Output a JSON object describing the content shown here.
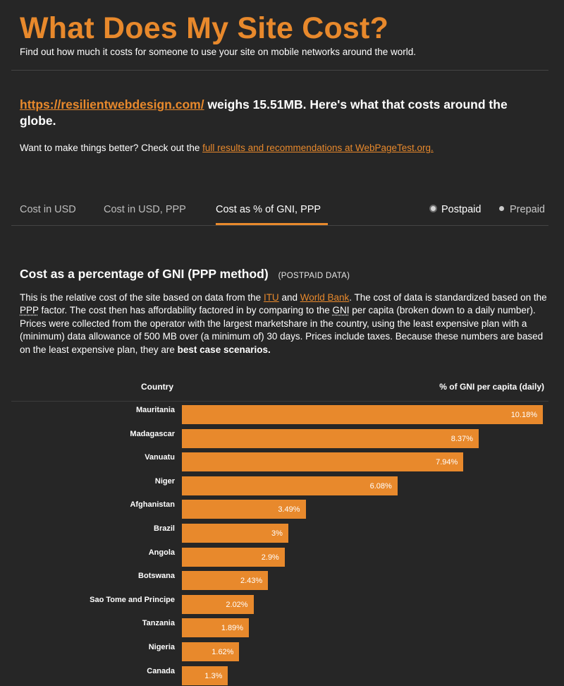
{
  "header": {
    "title": "What Does My Site Cost?",
    "tagline": "Find out how much it costs for someone to use your site on mobile networks around the world."
  },
  "summary": {
    "url": "https://resilientwebdesign.com/",
    "text": " weighs 15.51MB. Here's what that costs around the globe."
  },
  "cta": {
    "prefix": "Want to make things better? Check out the ",
    "link": "full results and recommendations at WebPageTest.org."
  },
  "tabs": [
    {
      "label": "Cost in USD"
    },
    {
      "label": "Cost in USD, PPP"
    },
    {
      "label": "Cost as % of GNI, PPP"
    }
  ],
  "plan_toggle": {
    "postpaid": "Postpaid",
    "prepaid": "Prepaid",
    "selected": "Postpaid"
  },
  "section": {
    "title": "Cost as a percentage of GNI (PPP method)",
    "tag": "(POSTPAID DATA)",
    "desc_1": "This is the relative cost of the site based on data from the ",
    "itu": "ITU",
    "and": " and ",
    "world_bank": "World Bank",
    "desc_2": ". The cost of data is standardized based on the ",
    "ppp": "PPP",
    "desc_3": " factor. The cost then has affordability factored in by comparing to the ",
    "gni": "GNI",
    "desc_4": " per capita (broken down to a daily number). Prices were collected from the operator with the largest marketshare in the country, using the least expensive plan with a (minimum) data allowance of 500 MB over (a minimum of) 30 days. Prices include taxes. Because these numbers are based on the least expensive plan, they are ",
    "best_case": "best case scenarios."
  },
  "table": {
    "col_country": "Country",
    "col_metric": "% of GNI per capita (daily)"
  },
  "chart_data": {
    "type": "bar",
    "orientation": "horizontal",
    "categories": [
      "Mauritania",
      "Madagascar",
      "Vanuatu",
      "Niger",
      "Afghanistan",
      "Brazil",
      "Angola",
      "Botswana",
      "Sao Tome and Principe",
      "Tanzania",
      "Nigeria",
      "Canada"
    ],
    "values": [
      10.18,
      8.37,
      7.94,
      6.08,
      3.49,
      3,
      2.9,
      2.43,
      2.02,
      1.89,
      1.62,
      1.3
    ],
    "value_labels": [
      "10.18%",
      "8.37%",
      "7.94%",
      "6.08%",
      "3.49%",
      "3%",
      "2.9%",
      "2.43%",
      "2.02%",
      "1.89%",
      "1.62%",
      "1.3%"
    ],
    "xlim": [
      0,
      10.18
    ],
    "xlabel": "% of GNI per capita (daily)",
    "ylabel": "Country",
    "grid": false,
    "bar_color": "#e8892c"
  },
  "colors": {
    "accent": "#e8892c",
    "background": "#262626",
    "text": "#ffffff"
  }
}
